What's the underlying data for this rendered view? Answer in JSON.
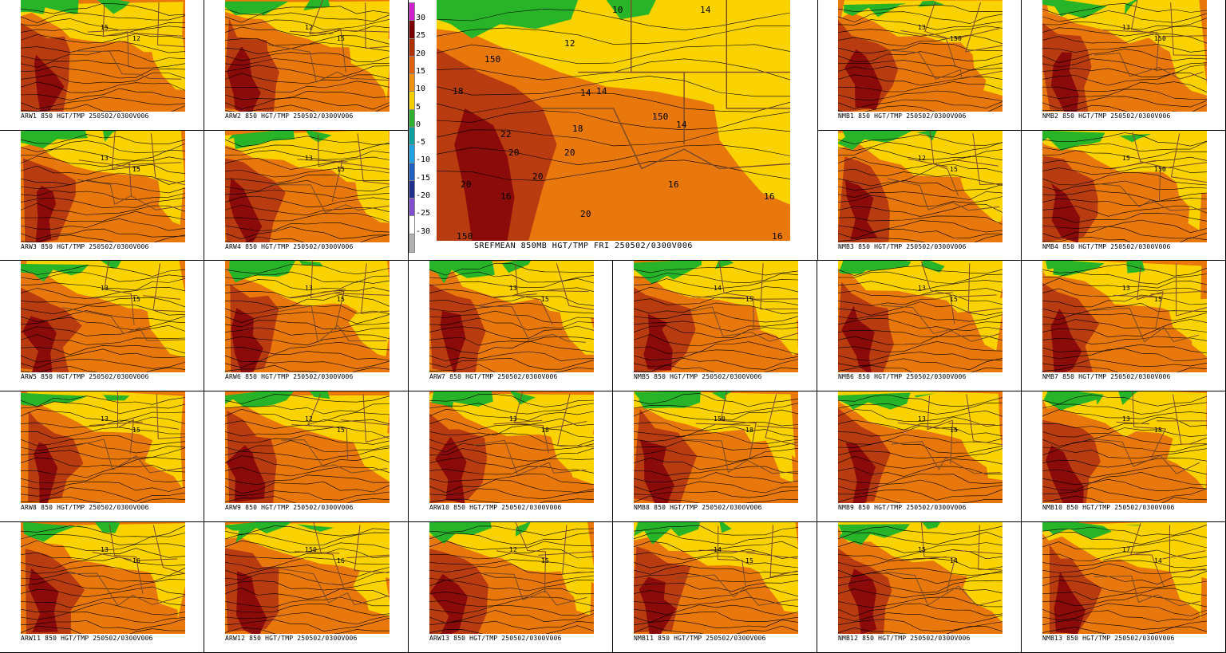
{
  "main_panel": {
    "caption": "SREFMEAN 850MB HGT/TMP FRI 250502/0300V006"
  },
  "colorbar": {
    "labels": [
      "30",
      "25",
      "20",
      "15",
      "10",
      "5",
      "0",
      "-5",
      "-10",
      "-15",
      "-20",
      "-25",
      "-30"
    ],
    "colors": [
      "#d020d0",
      "#780000",
      "#b03000",
      "#e06010",
      "#f09010",
      "#f8d000",
      "#30b030",
      "#10a0a0",
      "#20a0e0",
      "#2060c0",
      "#203090",
      "#8050d0",
      "#ffffff",
      "#b0b0b0"
    ]
  },
  "palette": {
    "dark_red": "#8b0a0a",
    "red_brown": "#b83c10",
    "orange": "#e8780c",
    "yellow": "#fad200",
    "green": "#28b428",
    "contour": "#000000",
    "border": "#7a4a2a"
  },
  "panels": [
    {
      "id": "ARW1",
      "caption": "ARW1 850 HGT/TMP 250502/0300V006",
      "labels": [
        "15",
        "12"
      ]
    },
    {
      "id": "ARW2",
      "caption": "ARW2 850 HGT/TMP 250502/0300V006",
      "labels": [
        "12",
        "15"
      ]
    },
    {
      "id": "NMB1",
      "caption": "NMB1 850 HGT/TMP 250502/0300V006",
      "labels": [
        "13",
        "150"
      ]
    },
    {
      "id": "NMB2",
      "caption": "NMB2 850 HGT/TMP 250502/0300V006",
      "labels": [
        "13",
        "150"
      ]
    },
    {
      "id": "ARW3",
      "caption": "ARW3 850 HGT/TMP 250502/0300V006",
      "labels": [
        "13",
        "15"
      ]
    },
    {
      "id": "ARW4",
      "caption": "ARW4 850 HGT/TMP 250502/0300V006",
      "labels": [
        "13",
        "15"
      ]
    },
    {
      "id": "NMB3",
      "caption": "NMB3 850 HGT/TMP 250502/0300V006",
      "labels": [
        "12",
        "15"
      ]
    },
    {
      "id": "NMB4",
      "caption": "NMB4 850 HGT/TMP 250502/0300V006",
      "labels": [
        "15",
        "150"
      ]
    },
    {
      "id": "ARW5",
      "caption": "ARW5 850 HGT/TMP 250502/0300V006",
      "labels": [
        "13",
        "15"
      ]
    },
    {
      "id": "ARW6",
      "caption": "ARW6 850 HGT/TMP 250502/0300V006",
      "labels": [
        "13",
        "15"
      ]
    },
    {
      "id": "ARW7",
      "caption": "ARW7 850 HGT/TMP 250502/0300V006",
      "labels": [
        "13",
        "15"
      ]
    },
    {
      "id": "NMB5",
      "caption": "NMB5 850 HGT/TMP 250502/0300V006",
      "labels": [
        "14",
        "15"
      ]
    },
    {
      "id": "NMB6",
      "caption": "NMB6 850 HGT/TMP 250502/0300V006",
      "labels": [
        "13",
        "15"
      ]
    },
    {
      "id": "NMB7",
      "caption": "NMB7 850 HGT/TMP 250502/0300V006",
      "labels": [
        "13",
        "15"
      ]
    },
    {
      "id": "ARW8",
      "caption": "ARW8 850 HGT/TMP 250502/0300V006",
      "labels": [
        "13",
        "15"
      ]
    },
    {
      "id": "ARW9",
      "caption": "ARW9 850 HGT/TMP 250502/0300V006",
      "labels": [
        "12",
        "15"
      ]
    },
    {
      "id": "ARW10",
      "caption": "ARW10 850 HGT/TMP 250502/0300V006",
      "labels": [
        "13",
        "18"
      ]
    },
    {
      "id": "NMB8",
      "caption": "NMB8 850 HGT/TMP 250502/0300V006",
      "labels": [
        "150",
        "18"
      ]
    },
    {
      "id": "NMB9",
      "caption": "NMB9 850 HGT/TMP 250502/0300V006",
      "labels": [
        "13",
        "15"
      ]
    },
    {
      "id": "NMB10",
      "caption": "NMB10 850 HGT/TMP 250502/0300V006",
      "labels": [
        "13",
        "15"
      ]
    },
    {
      "id": "ARW11",
      "caption": "ARW11 850 HGT/TMP 250502/0300V006",
      "labels": [
        "13",
        "16"
      ]
    },
    {
      "id": "ARW12",
      "caption": "ARW12 850 HGT/TMP 250502/0300V006",
      "labels": [
        "150",
        "16"
      ]
    },
    {
      "id": "ARW13",
      "caption": "ARW13 850 HGT/TMP 250502/0300V006",
      "labels": [
        "12",
        "15"
      ]
    },
    {
      "id": "NMB11",
      "caption": "NMB11 850 HGT/TMP 250502/0300V006",
      "labels": [
        "14",
        "15"
      ]
    },
    {
      "id": "NMB12",
      "caption": "NMB12 850 HGT/TMP 250502/0300V006",
      "labels": [
        "15",
        "14"
      ]
    },
    {
      "id": "NMB13",
      "caption": "NMB13 850 HGT/TMP 250502/0300V006",
      "labels": [
        "17",
        "14"
      ]
    }
  ],
  "main_labels": [
    "10",
    "14",
    "12",
    "14",
    "18",
    "22",
    "20",
    "16",
    "14",
    "20",
    "20",
    "18",
    "150",
    "16",
    "20",
    "16",
    "20",
    "150",
    "16",
    "14",
    "150"
  ]
}
